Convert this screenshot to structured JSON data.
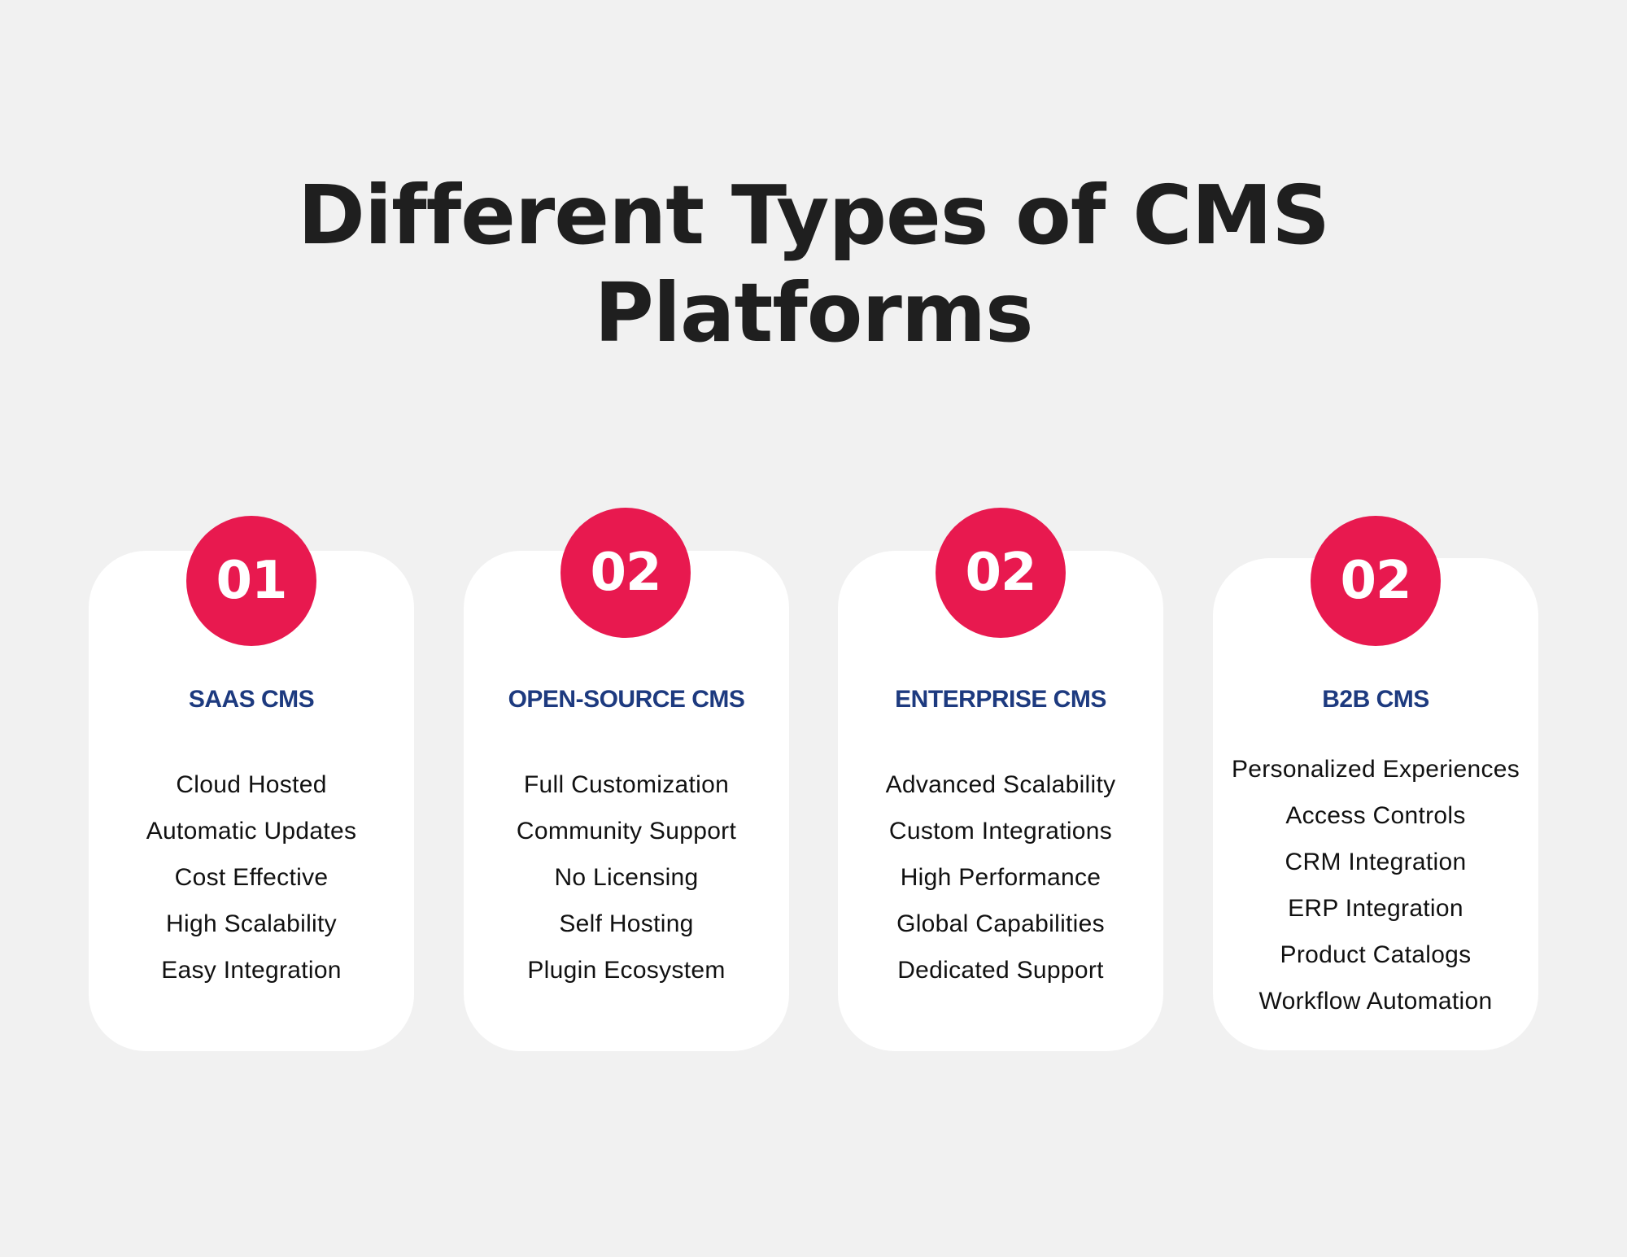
{
  "title": {
    "line1": "Different Types of CMS",
    "line2": "Platforms"
  },
  "colors": {
    "background": "#f1f1f1",
    "card": "#ffffff",
    "badge": "#e8194f",
    "heading": "#1d3a7f",
    "text": "#111111"
  },
  "cards": [
    {
      "number": "01",
      "heading": "SAAS CMS",
      "features": [
        "Cloud Hosted",
        "Automatic Updates",
        "Cost Effective",
        "High Scalability",
        "Easy Integration"
      ]
    },
    {
      "number": "02",
      "heading": "OPEN-SOURCE CMS",
      "features": [
        "Full Customization",
        "Community Support",
        "No Licensing",
        "Self Hosting",
        "Plugin Ecosystem"
      ]
    },
    {
      "number": "02",
      "heading": "ENTERPRISE CMS",
      "features": [
        "Advanced Scalability",
        "Custom Integrations",
        "High Performance",
        "Global Capabilities",
        "Dedicated Support"
      ]
    },
    {
      "number": "02",
      "heading": "B2B CMS",
      "features": [
        "Personalized Experiences",
        "Access Controls",
        "CRM Integration",
        "ERP Integration",
        "Product Catalogs",
        "Workflow Automation"
      ]
    }
  ]
}
